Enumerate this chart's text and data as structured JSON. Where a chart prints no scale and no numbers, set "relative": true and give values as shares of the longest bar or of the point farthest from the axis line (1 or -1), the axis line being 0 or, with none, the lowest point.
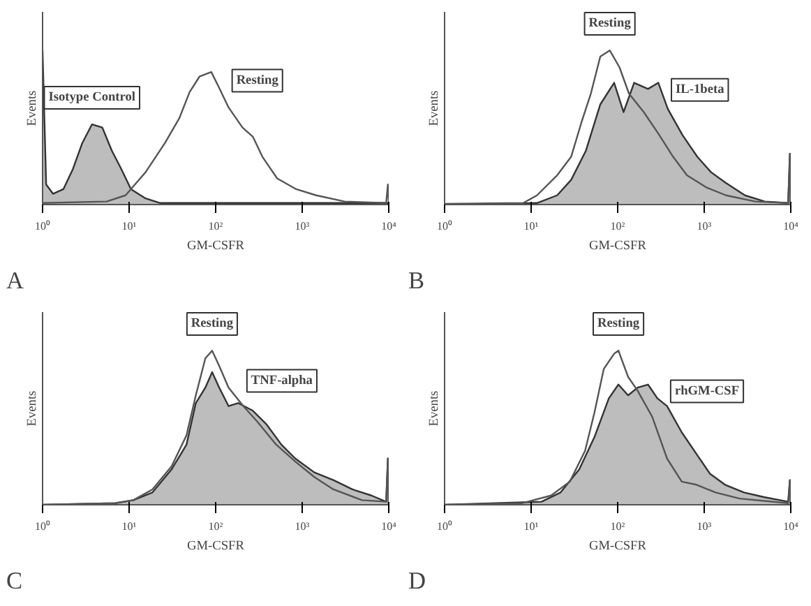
{
  "chart_data": [
    {
      "type": "line",
      "relative": true,
      "log": "x",
      "xlabel": "GM-CSFR",
      "ylabel": "Events",
      "annotations": [
        "A"
      ],
      "xlim": [
        1,
        10000
      ],
      "xticks": [
        {
          "value": 1,
          "label": "10⁰"
        },
        {
          "value": 10,
          "label": "10¹"
        },
        {
          "value": 100,
          "label": "10²"
        },
        {
          "value": 1000,
          "label": "10³"
        },
        {
          "value": 10000,
          "label": "10⁴"
        }
      ],
      "series": [
        {
          "name": "Resting",
          "color": "#555555",
          "x": [
            1,
            5.5,
            9.1,
            15.5,
            26,
            38,
            50,
            65,
            89,
            107,
            141,
            204,
            269,
            347,
            513,
            851,
            1450,
            3090,
            9330,
            9770,
            10000
          ],
          "values": [
            0.01,
            0.02,
            0.06,
            0.21,
            0.4,
            0.56,
            0.73,
            0.83,
            0.86,
            0.77,
            0.63,
            0.5,
            0.44,
            0.31,
            0.17,
            0.1,
            0.06,
            0.02,
            0.01,
            0.13,
            0.01
          ]
        },
        {
          "name": "Isotype Control",
          "type": "area",
          "color": "#bdbdbd",
          "x": [
            1,
            1.1,
            1.32,
            1.74,
            2.24,
            2.88,
            3.72,
            4.9,
            6.31,
            8.13,
            10.5,
            15.5,
            22.9,
            10000
          ],
          "values": [
            1,
            0.13,
            0.07,
            0.1,
            0.23,
            0.4,
            0.52,
            0.5,
            0.35,
            0.23,
            0.1,
            0.04,
            0.01,
            0.01
          ]
        }
      ]
    },
    {
      "type": "line",
      "relative": true,
      "log": "x",
      "xlabel": "GM-CSFR",
      "ylabel": "Events",
      "annotations": [
        "B"
      ],
      "xlim": [
        1,
        10000
      ],
      "xticks": [
        {
          "value": 1,
          "label": "10⁰"
        },
        {
          "value": 10,
          "label": "10¹"
        },
        {
          "value": 100,
          "label": "10²"
        },
        {
          "value": 1000,
          "label": "10³"
        },
        {
          "value": 10000,
          "label": "10⁴"
        }
      ],
      "series": [
        {
          "name": "Resting",
          "color": "#555555",
          "x": [
            1,
            8.1,
            11.7,
            20,
            29,
            38,
            49,
            63,
            81,
            105,
            135,
            200,
            295,
            437,
            631,
            1070,
            1780,
            3890,
            9330,
            9770,
            10000
          ],
          "values": [
            0.005,
            0.01,
            0.06,
            0.19,
            0.31,
            0.53,
            0.72,
            0.96,
            1,
            0.89,
            0.72,
            0.6,
            0.46,
            0.31,
            0.19,
            0.11,
            0.06,
            0.02,
            0.01,
            0.33,
            0.005
          ]
        },
        {
          "name": "IL-1beta",
          "type": "area",
          "color": "#bdbdbd",
          "x": [
            1,
            11.7,
            20,
            29,
            43,
            63,
            91,
            117,
            155,
            224,
            295,
            380,
            562,
            832,
            1200,
            1780,
            2950,
            5010,
            9330,
            9770,
            10000
          ],
          "values": [
            0,
            0.01,
            0.06,
            0.16,
            0.35,
            0.65,
            0.79,
            0.6,
            0.79,
            0.75,
            0.79,
            0.62,
            0.45,
            0.31,
            0.21,
            0.14,
            0.06,
            0.02,
            0.01,
            0.33,
            0
          ]
        }
      ]
    },
    {
      "type": "line",
      "relative": true,
      "log": "x",
      "xlabel": "GM-CSFR",
      "ylabel": "Events",
      "annotations": [
        "C"
      ],
      "xlim": [
        1,
        10000
      ],
      "xticks": [
        {
          "value": 1,
          "label": "10⁰"
        },
        {
          "value": 10,
          "label": "10¹"
        },
        {
          "value": 100,
          "label": "10²"
        },
        {
          "value": 1000,
          "label": "10³"
        },
        {
          "value": 10000,
          "label": "10⁴"
        }
      ],
      "series": [
        {
          "name": "Resting",
          "color": "#555555",
          "x": [
            1,
            6.9,
            11.2,
            18.6,
            31,
            46,
            59,
            76,
            91,
            110,
            141,
            209,
            302,
            501,
            832,
            1380,
            2290,
            4900,
            9330,
            9770,
            10000
          ],
          "values": [
            0,
            0.01,
            0.03,
            0.1,
            0.25,
            0.45,
            0.71,
            0.95,
            1,
            0.9,
            0.76,
            0.64,
            0.54,
            0.39,
            0.28,
            0.18,
            0.1,
            0.03,
            0.02,
            0.3,
            0
          ]
        },
        {
          "name": "TNF-alpha",
          "type": "area",
          "color": "#bdbdbd",
          "x": [
            1,
            6.9,
            11.2,
            18.6,
            31,
            46,
            59,
            76,
            91,
            110,
            141,
            182,
            269,
            389,
            575,
            832,
            1380,
            2290,
            3800,
            6310,
            9330,
            9770,
            10000
          ],
          "values": [
            0,
            0.01,
            0.03,
            0.08,
            0.23,
            0.39,
            0.66,
            0.76,
            0.86,
            0.76,
            0.64,
            0.66,
            0.61,
            0.52,
            0.39,
            0.3,
            0.21,
            0.16,
            0.1,
            0.06,
            0.02,
            0.3,
            0
          ]
        }
      ]
    },
    {
      "type": "line",
      "relative": true,
      "log": "x",
      "xlabel": "GM-CSFR",
      "ylabel": "Events",
      "annotations": [
        "D"
      ],
      "xlim": [
        1,
        10000
      ],
      "xticks": [
        {
          "value": 1,
          "label": "10⁰"
        },
        {
          "value": 10,
          "label": "10¹"
        },
        {
          "value": 100,
          "label": "10²"
        },
        {
          "value": 1000,
          "label": "10³"
        },
        {
          "value": 10000,
          "label": "10⁴"
        }
      ],
      "series": [
        {
          "name": "Resting",
          "color": "#555555",
          "x": [
            1,
            7.8,
            17,
            28,
            42,
            54,
            69,
            91,
            102,
            132,
            170,
            251,
            372,
            550,
            813,
            1350,
            2570,
            9330,
            9770,
            10000
          ],
          "values": [
            0,
            0.01,
            0.06,
            0.15,
            0.35,
            0.6,
            0.88,
            0.98,
            1,
            0.83,
            0.74,
            0.57,
            0.3,
            0.15,
            0.13,
            0.08,
            0.04,
            0.01,
            0.16,
            0
          ]
        },
        {
          "name": "rhGM-CSF",
          "type": "area",
          "color": "#bdbdbd",
          "x": [
            1,
            13.2,
            21.9,
            36,
            54,
            79,
            102,
            132,
            170,
            224,
            288,
            372,
            550,
            813,
            1170,
            1740,
            2880,
            4900,
            9330,
            9770,
            10000
          ],
          "values": [
            0,
            0.02,
            0.08,
            0.23,
            0.44,
            0.69,
            0.78,
            0.71,
            0.76,
            0.78,
            0.69,
            0.64,
            0.47,
            0.33,
            0.2,
            0.13,
            0.08,
            0.05,
            0.02,
            0.16,
            0
          ]
        }
      ]
    }
  ]
}
